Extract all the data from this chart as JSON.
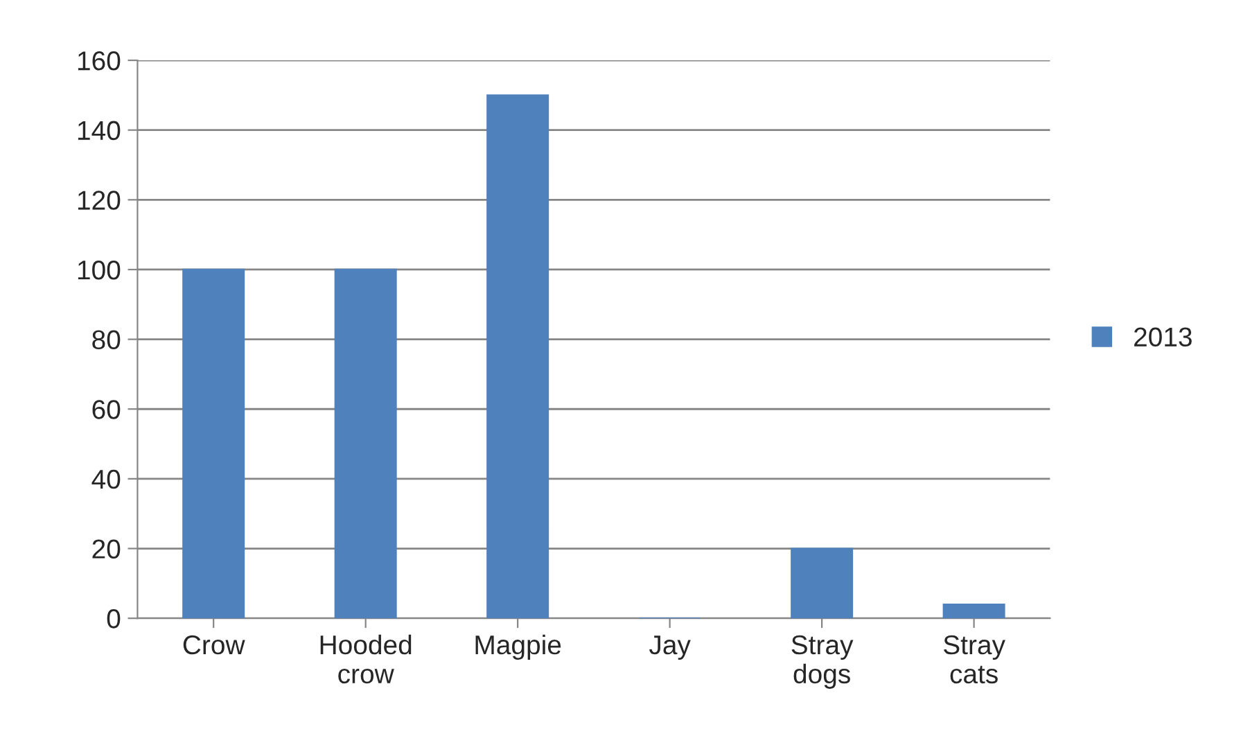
{
  "chart_data": {
    "type": "bar",
    "categories": [
      "Crow",
      "Hooded\ncrow",
      "Magpie",
      "Jay",
      "Stray\ndogs",
      "Stray\ncats"
    ],
    "series": [
      {
        "name": "2013",
        "color": "#4f81bd",
        "values": [
          100,
          100,
          150,
          0,
          20,
          4
        ]
      }
    ],
    "ylim": [
      0,
      160
    ],
    "yticks": [
      0,
      20,
      40,
      60,
      80,
      100,
      120,
      140,
      160
    ],
    "grid": "y",
    "legend": "right"
  }
}
